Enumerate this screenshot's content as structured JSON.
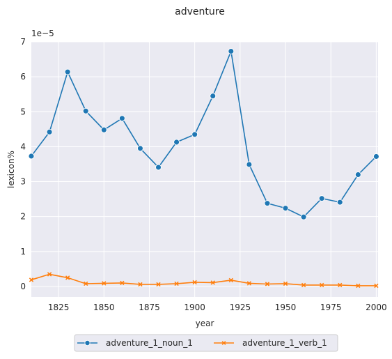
{
  "chart_data": {
    "type": "line",
    "title": "adventure",
    "xlabel": "year",
    "ylabel": "lexicon%",
    "y_multiplier_label": "1e−5",
    "xlim": [
      1810,
      2001
    ],
    "ylim": [
      -0.3,
      7.0
    ],
    "x_ticks": [
      1825,
      1850,
      1875,
      1900,
      1925,
      1950,
      1975,
      2000
    ],
    "y_ticks": [
      0,
      1,
      2,
      3,
      4,
      5,
      6,
      7
    ],
    "grid": true,
    "legend_position": "bottom-center",
    "x": [
      1810,
      1820,
      1830,
      1840,
      1850,
      1860,
      1870,
      1880,
      1890,
      1900,
      1910,
      1920,
      1930,
      1940,
      1950,
      1960,
      1970,
      1980,
      1990,
      2000
    ],
    "series": [
      {
        "name": "adventure_1_noun_1",
        "color": "#1f77b4",
        "marker": "circle",
        "values": [
          3.73,
          4.42,
          6.14,
          5.02,
          4.48,
          4.81,
          3.95,
          3.41,
          4.13,
          4.35,
          5.45,
          6.73,
          3.49,
          2.38,
          2.24,
          1.99,
          2.52,
          2.41,
          3.2,
          3.72
        ]
      },
      {
        "name": "adventure_1_verb_1",
        "color": "#ff7f0e",
        "marker": "x",
        "values": [
          0.19,
          0.35,
          0.25,
          0.08,
          0.09,
          0.1,
          0.06,
          0.06,
          0.08,
          0.12,
          0.11,
          0.18,
          0.09,
          0.07,
          0.08,
          0.04,
          0.04,
          0.04,
          0.02,
          0.02
        ]
      }
    ]
  }
}
